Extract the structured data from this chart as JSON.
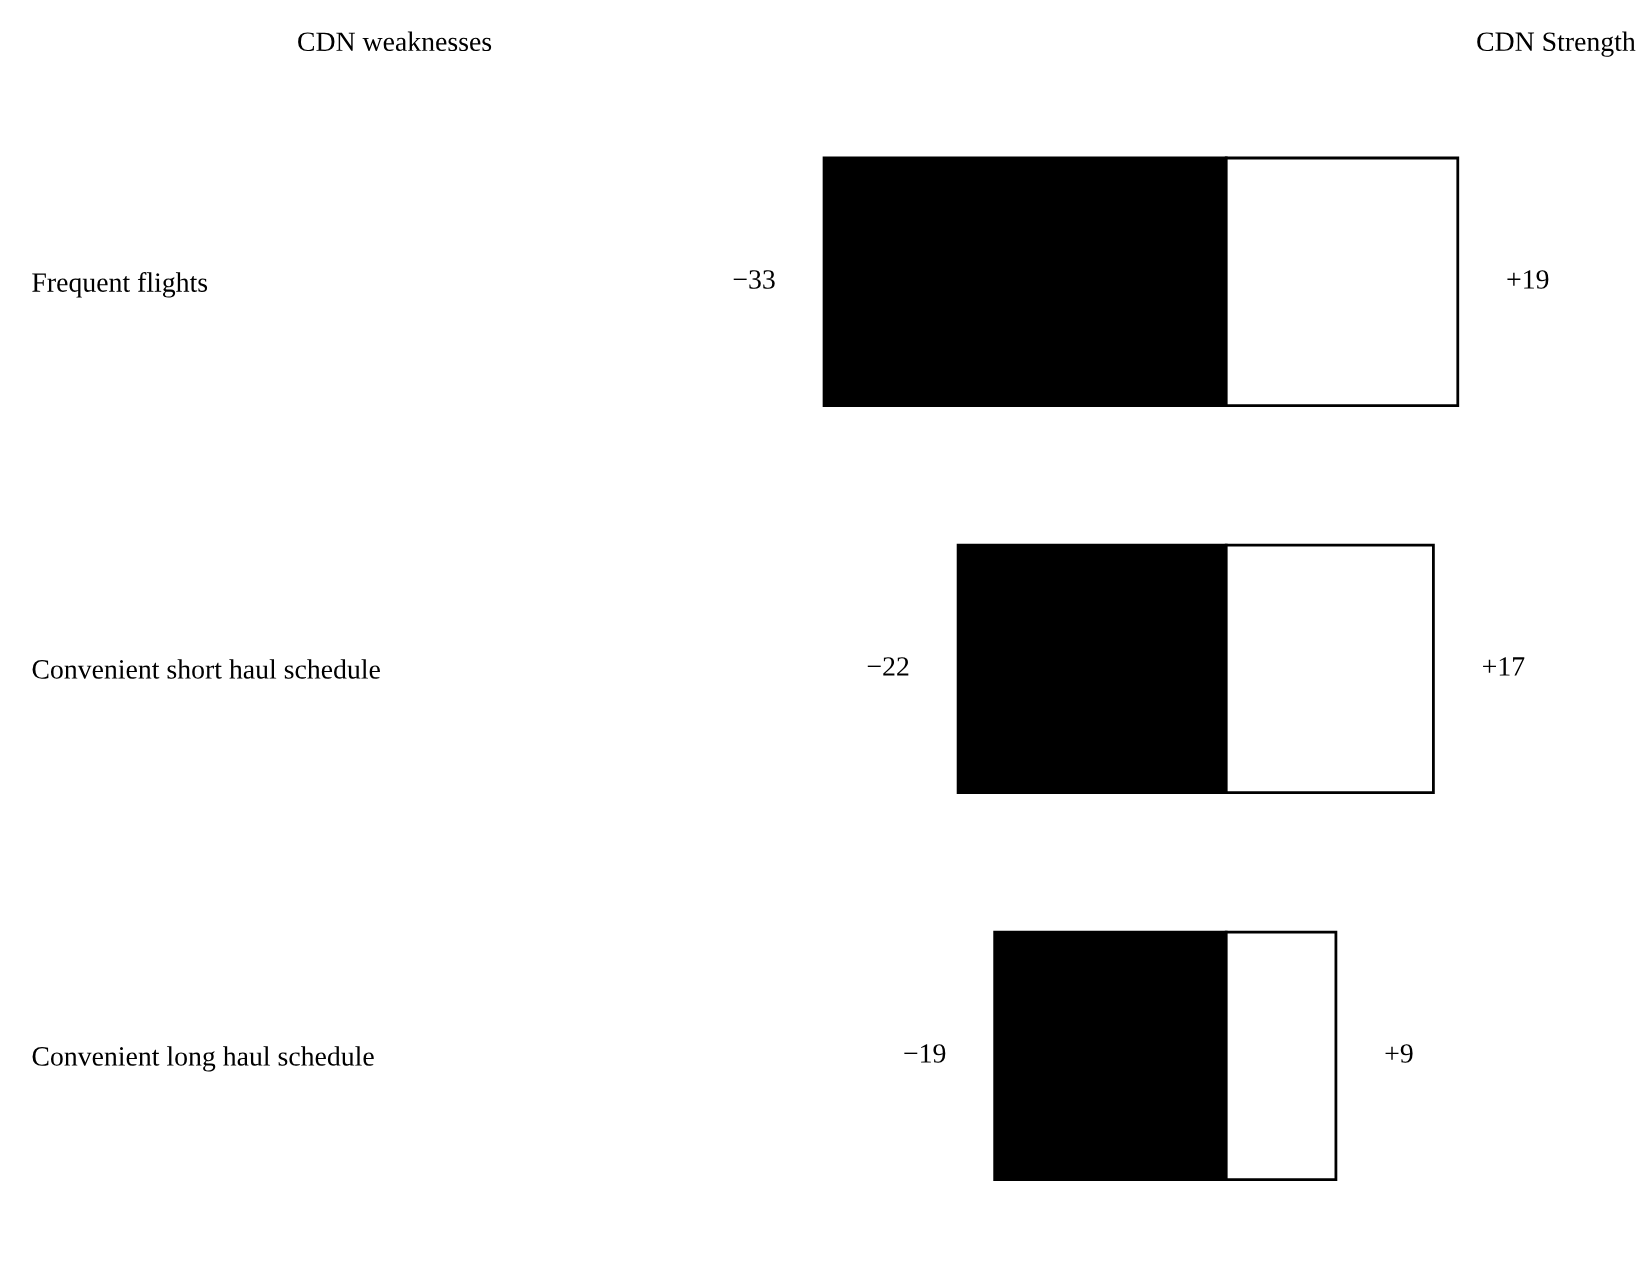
{
  "chart_data": {
    "type": "bar",
    "orientation": "horizontal",
    "stacked": true,
    "categories": [
      "Frequent flights",
      "Convenient short haul schedule",
      "Convenient long haul schedule"
    ],
    "series": [
      {
        "color": "#000000",
        "values": [
          -33,
          -22,
          -19
        ],
        "value_labels": [
          "−33",
          "−22",
          "−19"
        ]
      },
      {
        "color": "#ffffff",
        "values": [
          19,
          17,
          9
        ],
        "value_labels": [
          "+19",
          "+17",
          "+9"
        ]
      }
    ],
    "annotations": [
      "CDN weaknesses",
      "CDN Strength"
    ]
  }
}
